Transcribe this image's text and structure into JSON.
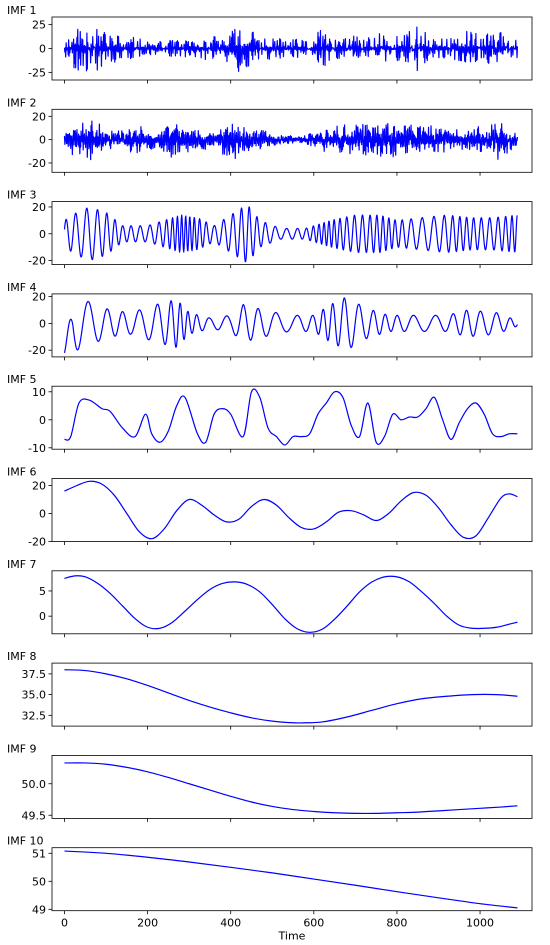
{
  "figure": {
    "xlabel": "Time",
    "line_color": "#0000ff"
  },
  "chart_data": [
    {
      "type": "line",
      "title": "IMF 1",
      "xlabel": "",
      "ylabel": "",
      "xlim": [
        -30,
        1125
      ],
      "ylim": [
        -33,
        33
      ],
      "yticks": [
        -25,
        0,
        25
      ],
      "xticks": [
        0,
        200,
        400,
        600,
        800,
        1000
      ],
      "show_xticklabels": false,
      "series": [
        {
          "gen": {
            "kind": "noise",
            "n": 1090,
            "amp": 6,
            "hf": 1.25,
            "seed": 11,
            "env": [
              [
                0,
                10
              ],
              [
                20,
                22
              ],
              [
                60,
                30
              ],
              [
                90,
                20
              ],
              [
                130,
                16
              ],
              [
                200,
                8
              ],
              [
                300,
                10
              ],
              [
                390,
                16
              ],
              [
                430,
                28
              ],
              [
                460,
                16
              ],
              [
                540,
                10
              ],
              [
                600,
                12
              ],
              [
                620,
                22
              ],
              [
                660,
                12
              ],
              [
                740,
                14
              ],
              [
                760,
                24
              ],
              [
                790,
                14
              ],
              [
                820,
                16
              ],
              [
                840,
                28
              ],
              [
                880,
                14
              ],
              [
                940,
                12
              ],
              [
                960,
                20
              ],
              [
                1000,
                14
              ],
              [
                1050,
                20
              ],
              [
                1090,
                14
              ]
            ]
          }
        }
      ]
    },
    {
      "type": "line",
      "title": "IMF 2",
      "xlabel": "",
      "ylabel": "",
      "xlim": [
        -30,
        1125
      ],
      "ylim": [
        -28,
        26
      ],
      "yticks": [
        -20,
        0,
        20
      ],
      "xticks": [
        0,
        200,
        400,
        600,
        800,
        1000
      ],
      "show_xticklabels": false,
      "series": [
        {
          "gen": {
            "kind": "noise",
            "n": 1090,
            "amp": 1,
            "hf": 0.55,
            "seed": 23,
            "env": [
              [
                0,
                16
              ],
              [
                40,
                18
              ],
              [
                60,
                22
              ],
              [
                110,
                10
              ],
              [
                160,
                14
              ],
              [
                180,
                14
              ],
              [
                230,
                8
              ],
              [
                250,
                18
              ],
              [
                270,
                20
              ],
              [
                330,
                10
              ],
              [
                380,
                18
              ],
              [
                420,
                20
              ],
              [
                500,
                6
              ],
              [
                560,
                4
              ],
              [
                620,
                12
              ],
              [
                660,
                14
              ],
              [
                720,
                18
              ],
              [
                800,
                18
              ],
              [
                860,
                16
              ],
              [
                950,
                10
              ],
              [
                1020,
                16
              ],
              [
                1040,
                26
              ],
              [
                1090,
                6
              ]
            ]
          }
        }
      ]
    },
    {
      "type": "line",
      "title": "IMF 3",
      "xlabel": "",
      "ylabel": "",
      "xlim": [
        -30,
        1125
      ],
      "ylim": [
        -23,
        24
      ],
      "yticks": [
        -20,
        0,
        20
      ],
      "xticks": [
        0,
        200,
        400,
        600,
        800,
        1000
      ],
      "show_xticklabels": false,
      "series": [
        {
          "gen": {
            "kind": "wave",
            "n": 1090,
            "period": 24,
            "env": [
              [
                0,
                10
              ],
              [
                30,
                16
              ],
              [
                60,
                20
              ],
              [
                100,
                16
              ],
              [
                140,
                6
              ],
              [
                200,
                6
              ],
              [
                280,
                14
              ],
              [
                320,
                12
              ],
              [
                360,
                6
              ],
              [
                420,
                18
              ],
              [
                440,
                22
              ],
              [
                470,
                10
              ],
              [
                520,
                4
              ],
              [
                580,
                4
              ],
              [
                640,
                10
              ],
              [
                700,
                14
              ],
              [
                760,
                14
              ],
              [
                800,
                10
              ],
              [
                860,
                12
              ],
              [
                920,
                14
              ],
              [
                980,
                12
              ],
              [
                1030,
                12
              ],
              [
                1090,
                14
              ]
            ]
          }
        }
      ]
    },
    {
      "type": "line",
      "title": "IMF 4",
      "xlabel": "",
      "ylabel": "",
      "xlim": [
        -30,
        1125
      ],
      "ylim": [
        -25,
        22
      ],
      "yticks": [
        -20,
        0,
        20
      ],
      "xticks": [
        0,
        200,
        400,
        600,
        800,
        1000
      ],
      "show_xticklabels": false,
      "series": [
        {
          "gen": {
            "kind": "wave",
            "n": 1090,
            "period": 46,
            "start": -22,
            "env": [
              [
                0,
                18
              ],
              [
                30,
                20
              ],
              [
                60,
                16
              ],
              [
                110,
                10
              ],
              [
                160,
                8
              ],
              [
                220,
                14
              ],
              [
                270,
                18
              ],
              [
                300,
                8
              ],
              [
                350,
                4
              ],
              [
                400,
                6
              ],
              [
                430,
                14
              ],
              [
                480,
                10
              ],
              [
                540,
                6
              ],
              [
                600,
                6
              ],
              [
                640,
                14
              ],
              [
                680,
                20
              ],
              [
                720,
                12
              ],
              [
                780,
                6
              ],
              [
                860,
                6
              ],
              [
                920,
                6
              ],
              [
                970,
                10
              ],
              [
                1040,
                8
              ],
              [
                1090,
                2
              ]
            ]
          }
        }
      ]
    },
    {
      "type": "line",
      "title": "IMF 5",
      "xlabel": "",
      "ylabel": "",
      "xlim": [
        -30,
        1125
      ],
      "ylim": [
        -10.5,
        12
      ],
      "yticks": [
        -10,
        0,
        10
      ],
      "xticks": [
        0,
        200,
        400,
        600,
        800,
        1000
      ],
      "show_xticklabels": false,
      "series": [
        {
          "name": "",
          "x": [
            0,
            15,
            35,
            60,
            90,
            110,
            140,
            170,
            195,
            210,
            230,
            250,
            270,
            290,
            320,
            340,
            360,
            380,
            400,
            430,
            450,
            470,
            490,
            510,
            530,
            550,
            570,
            590,
            610,
            630,
            650,
            670,
            690,
            710,
            730,
            750,
            770,
            790,
            810,
            830,
            850,
            870,
            890,
            910,
            930,
            950,
            970,
            990,
            1010,
            1030,
            1050,
            1070,
            1090
          ],
          "y": [
            -7,
            -6,
            6,
            7,
            4,
            3,
            -3,
            -6,
            2,
            -5,
            -8,
            -4,
            5,
            8,
            -5,
            -8,
            2,
            4,
            2,
            -6,
            10,
            8,
            -3,
            -6,
            -9,
            -6,
            -6,
            -5,
            2,
            6,
            10,
            8,
            -2,
            -6,
            6,
            -8,
            -6,
            2,
            0,
            1,
            1,
            4,
            8,
            0,
            -7,
            -1,
            4,
            6,
            2,
            -5,
            -6,
            -5,
            -5
          ]
        }
      ]
    },
    {
      "type": "line",
      "title": "IMF 6",
      "xlabel": "",
      "ylabel": "",
      "xlim": [
        -30,
        1125
      ],
      "ylim": [
        -20,
        25
      ],
      "yticks": [
        -20,
        0,
        20
      ],
      "xticks": [
        0,
        200,
        400,
        600,
        800,
        1000
      ],
      "show_xticklabels": false,
      "series": [
        {
          "name": "",
          "x": [
            0,
            30,
            60,
            90,
            120,
            150,
            180,
            210,
            240,
            270,
            300,
            330,
            360,
            390,
            420,
            450,
            480,
            510,
            540,
            570,
            600,
            630,
            660,
            690,
            720,
            750,
            780,
            810,
            840,
            870,
            900,
            930,
            960,
            990,
            1020,
            1050,
            1070,
            1090
          ],
          "y": [
            16,
            20,
            23,
            21,
            13,
            0,
            -13,
            -18,
            -11,
            2,
            10,
            6,
            -1,
            -6,
            -4,
            5,
            10,
            6,
            -3,
            -10,
            -11,
            -6,
            1,
            2,
            -1,
            -5,
            0,
            9,
            15,
            13,
            4,
            -8,
            -17,
            -16,
            -3,
            11,
            14,
            12
          ]
        }
      ]
    },
    {
      "type": "line",
      "title": "IMF 7",
      "xlabel": "",
      "ylabel": "",
      "xlim": [
        -30,
        1125
      ],
      "ylim": [
        -3.5,
        9
      ],
      "yticks": [
        0,
        5
      ],
      "xticks": [
        0,
        200,
        400,
        600,
        800,
        1000
      ],
      "show_xticklabels": false,
      "series": [
        {
          "name": "",
          "x": [
            0,
            25,
            50,
            80,
            110,
            140,
            170,
            200,
            230,
            260,
            290,
            320,
            350,
            380,
            410,
            440,
            470,
            500,
            530,
            560,
            590,
            620,
            650,
            680,
            710,
            740,
            770,
            800,
            830,
            860,
            890,
            920,
            950,
            980,
            1010,
            1040,
            1070,
            1090
          ],
          "y": [
            7.5,
            8,
            7.8,
            6.5,
            4.5,
            2,
            -0.5,
            -2.2,
            -2.4,
            -1.2,
            1,
            3.3,
            5.3,
            6.5,
            6.8,
            6.3,
            4.8,
            2.3,
            -0.5,
            -2.5,
            -3.2,
            -2.6,
            -0.6,
            2,
            4.8,
            6.8,
            7.8,
            7.8,
            6.8,
            4.8,
            2.5,
            0,
            -1.8,
            -2.4,
            -2.4,
            -2.2,
            -1.6,
            -1.2
          ]
        }
      ]
    },
    {
      "type": "line",
      "title": "IMF 8",
      "xlabel": "",
      "ylabel": "",
      "xlim": [
        -30,
        1125
      ],
      "ylim": [
        31.2,
        38.8
      ],
      "yticks": [
        32.5,
        35.0,
        37.5
      ],
      "ytick_labels": [
        "32.5",
        "35.0",
        "37.5"
      ],
      "xticks": [
        0,
        200,
        400,
        600,
        800,
        1000
      ],
      "show_xticklabels": false,
      "series": [
        {
          "name": "",
          "x": [
            0,
            50,
            100,
            150,
            200,
            250,
            300,
            350,
            400,
            450,
            500,
            550,
            580,
            620,
            680,
            740,
            800,
            860,
            920,
            980,
            1040,
            1090
          ],
          "y": [
            38,
            37.9,
            37.5,
            36.9,
            36.1,
            35.2,
            34.3,
            33.5,
            32.8,
            32.2,
            31.8,
            31.6,
            31.6,
            31.7,
            32.3,
            33.1,
            33.9,
            34.5,
            34.8,
            35,
            35,
            34.8
          ]
        }
      ]
    },
    {
      "type": "line",
      "title": "IMF 9",
      "xlabel": "",
      "ylabel": "",
      "xlim": [
        -30,
        1125
      ],
      "ylim": [
        49.45,
        50.45
      ],
      "yticks": [
        49.5,
        50.0
      ],
      "ytick_labels": [
        "49.5",
        "50.0"
      ],
      "xticks": [
        0,
        200,
        400,
        600,
        800,
        1000
      ],
      "show_xticklabels": false,
      "series": [
        {
          "name": "",
          "x": [
            0,
            50,
            100,
            150,
            200,
            250,
            300,
            350,
            400,
            450,
            500,
            550,
            600,
            650,
            700,
            750,
            800,
            850,
            900,
            950,
            1000,
            1050,
            1090
          ],
          "y": [
            50.33,
            50.33,
            50.31,
            50.26,
            50.19,
            50.1,
            50.0,
            49.9,
            49.8,
            49.71,
            49.64,
            49.59,
            49.56,
            49.54,
            49.53,
            49.53,
            49.54,
            49.55,
            49.57,
            49.59,
            49.61,
            49.63,
            49.65
          ]
        }
      ]
    },
    {
      "type": "line",
      "title": "IMF 10",
      "xlabel": "Time",
      "ylabel": "",
      "xlim": [
        -30,
        1125
      ],
      "ylim": [
        48.95,
        51.2
      ],
      "yticks": [
        49,
        50,
        51
      ],
      "xticks": [
        0,
        200,
        400,
        600,
        800,
        1000
      ],
      "show_xticklabels": true,
      "series": [
        {
          "name": "",
          "x": [
            0,
            100,
            200,
            300,
            400,
            500,
            600,
            700,
            800,
            900,
            1000,
            1090
          ],
          "y": [
            51.08,
            51.0,
            50.86,
            50.69,
            50.5,
            50.3,
            50.08,
            49.86,
            49.63,
            49.41,
            49.2,
            49.05
          ]
        }
      ]
    }
  ]
}
